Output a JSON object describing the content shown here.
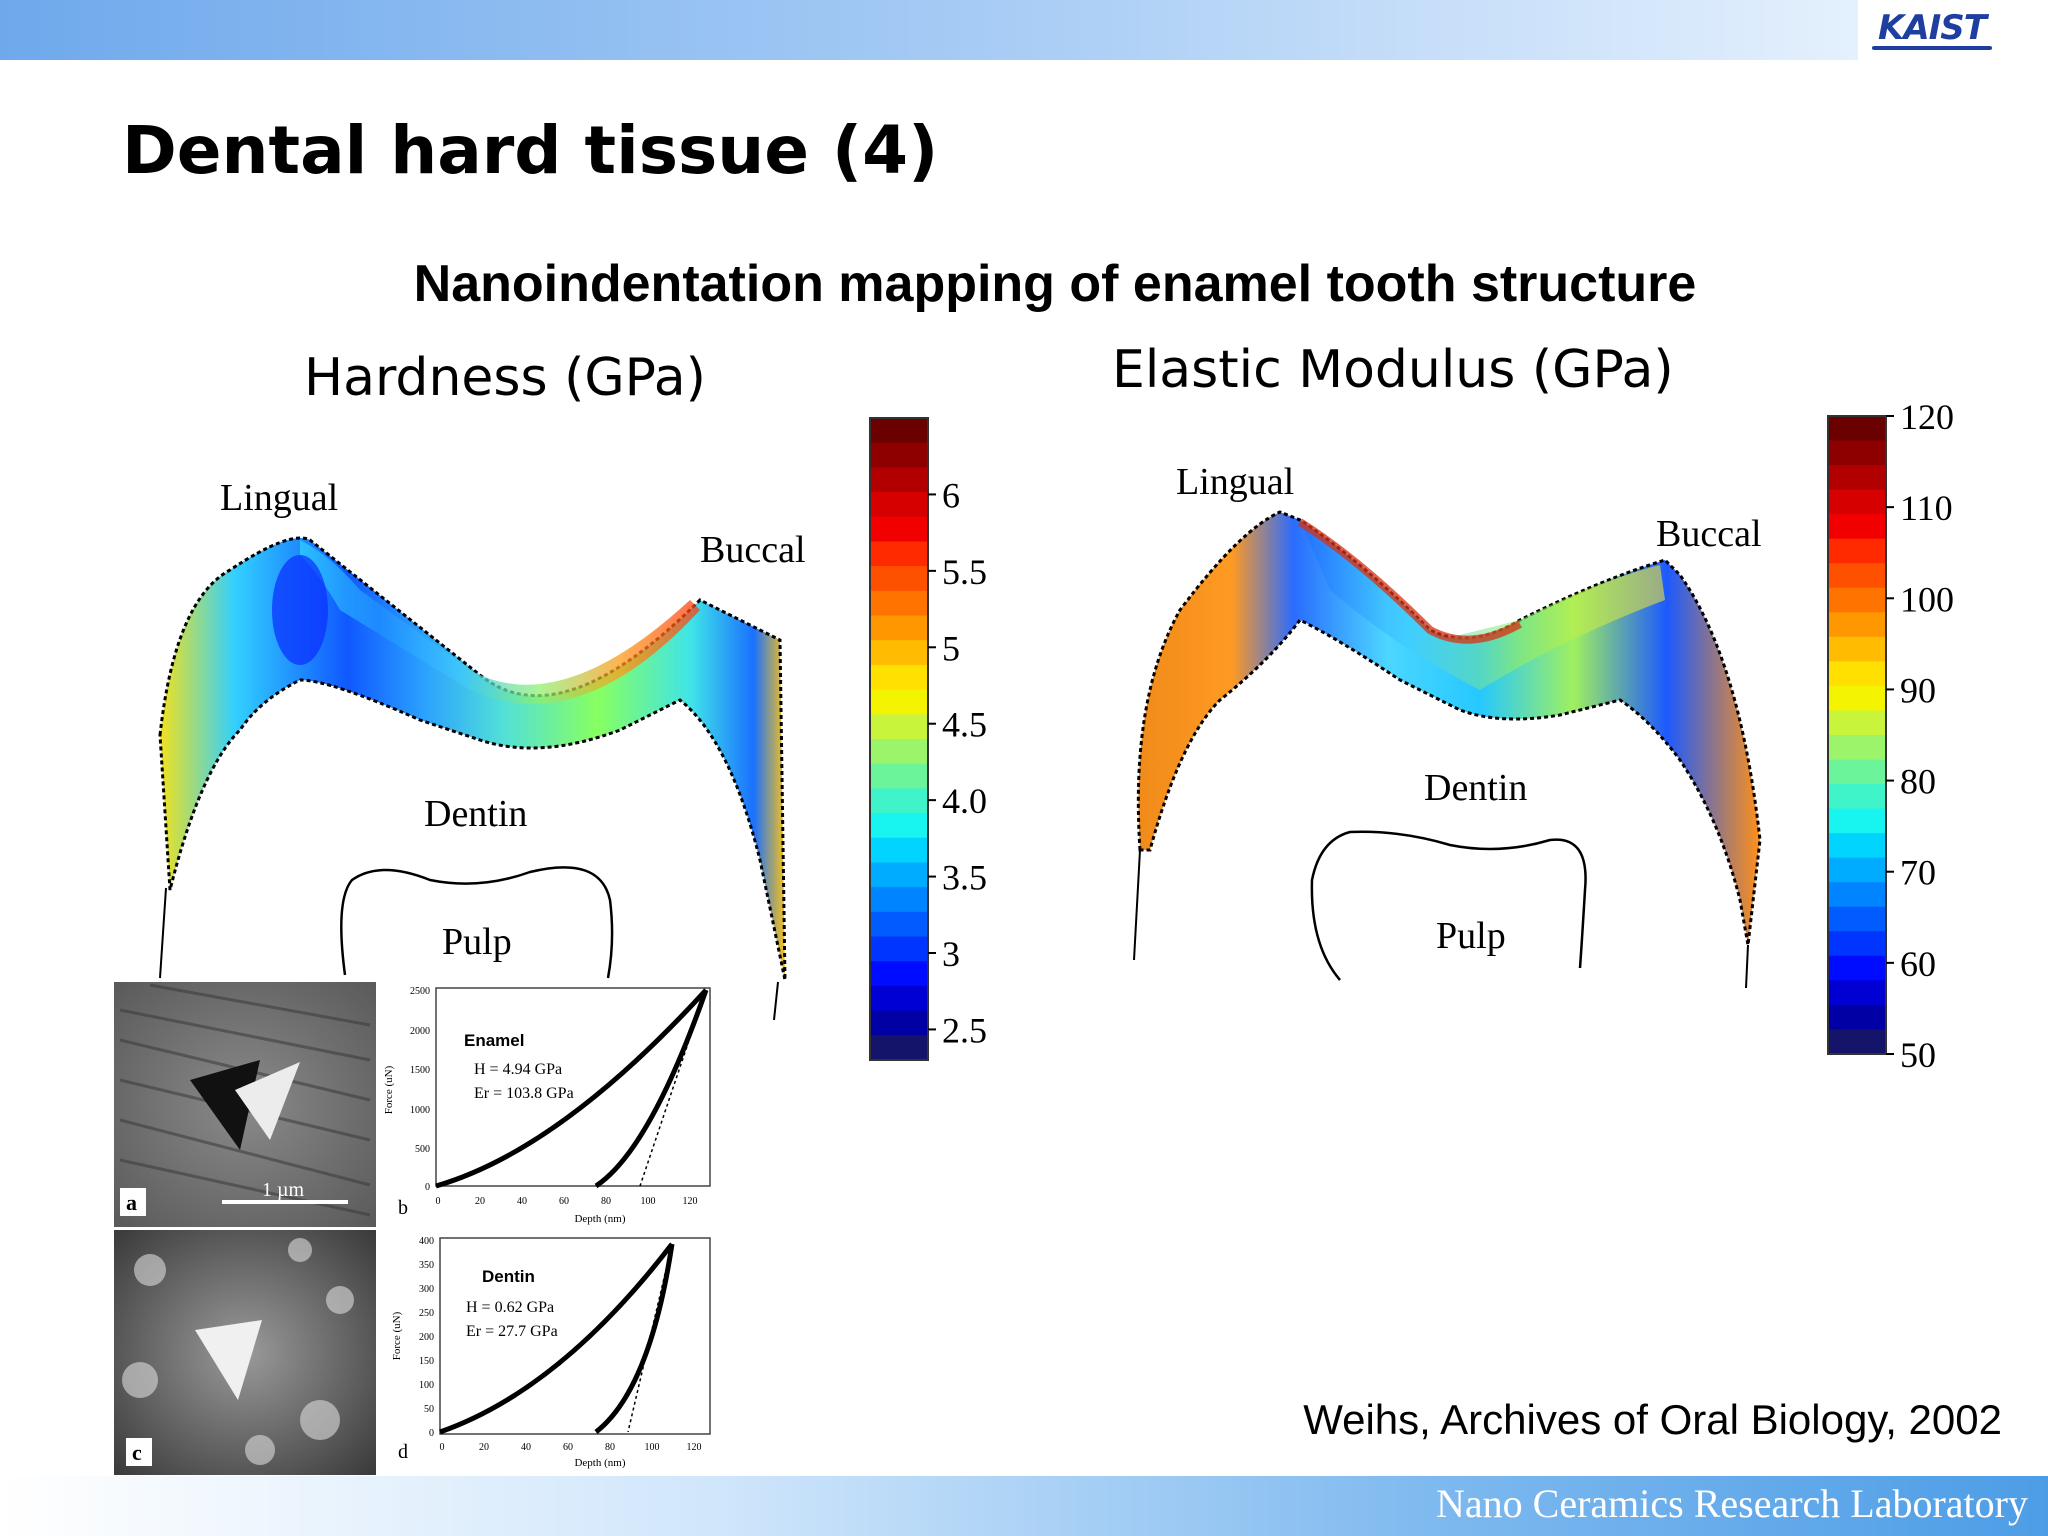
{
  "header": {
    "logo_text": "KAIST"
  },
  "page_title": "Dental hard tissue (4)",
  "subtitle": "Nanoindentation mapping of enamel tooth structure",
  "hardness_map": {
    "title": "Hardness (GPa)",
    "labels": {
      "lingual": "Lingual",
      "buccal": "Buccal",
      "dentin": "Dentin",
      "pulp": "Pulp"
    },
    "colorbar_ticks": [
      "6",
      "5.5",
      "5",
      "4.5",
      "4.0",
      "3.5",
      "3",
      "2.5"
    ],
    "colorbar_range": [
      2.3,
      6.5
    ]
  },
  "modulus_map": {
    "title": "Elastic Modulus (GPa)",
    "labels": {
      "lingual": "Lingual",
      "buccal": "Buccal",
      "dentin": "Dentin",
      "pulp": "Pulp"
    },
    "colorbar_ticks": [
      "120",
      "110",
      "100",
      "90",
      "80",
      "70",
      "60",
      "50"
    ],
    "colorbar_range": [
      50,
      120
    ]
  },
  "inset": {
    "enamel_plot": {
      "panel_image_label": "a",
      "scale_label": "1 µm",
      "panel_plot_label": "b",
      "title": "Enamel",
      "hardness": "H = 4.94 GPa",
      "modulus": "Er = 103.8 GPa",
      "ylabel": "Force (uN)",
      "xlabel": "Depth (nm)",
      "yticks": [
        "2500",
        "2000",
        "1500",
        "1000",
        "500",
        "0"
      ],
      "xticks": [
        "0",
        "20",
        "40",
        "60",
        "80",
        "100",
        "120"
      ]
    },
    "dentin_plot": {
      "panel_image_label": "c",
      "panel_plot_label": "d",
      "title": "Dentin",
      "hardness": "H = 0.62 GPa",
      "modulus": "Er = 27.7 GPa",
      "ylabel": "Force (uN)",
      "xlabel": "Depth (nm)",
      "yticks": [
        "400",
        "350",
        "300",
        "250",
        "200",
        "150",
        "100",
        "50",
        "0"
      ],
      "xticks": [
        "0",
        "20",
        "40",
        "60",
        "80",
        "100",
        "120"
      ]
    }
  },
  "citation": "Weihs, Archives of Oral Biology, 2002",
  "footer": {
    "lab_name": "Nano Ceramics Research Laboratory"
  }
}
